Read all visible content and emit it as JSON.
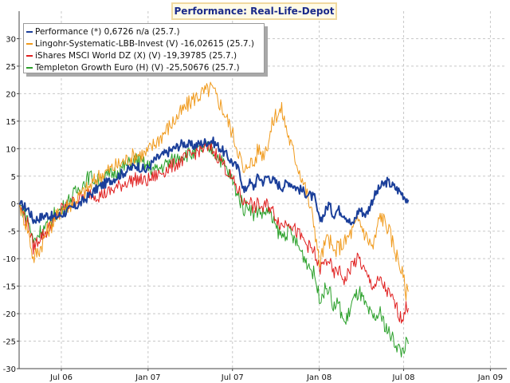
{
  "chart_data": {
    "type": "line",
    "title": "Performance: Real-Life-Depot",
    "ylim": [
      -30,
      35
    ],
    "yticks": [
      -30,
      -25,
      -20,
      -15,
      -10,
      -5,
      0,
      5,
      10,
      15,
      20,
      25,
      30
    ],
    "xlim": [
      0,
      1040
    ],
    "xticks": [
      {
        "label": "Jul 06",
        "day": 90
      },
      {
        "label": "Jan 07",
        "day": 275
      },
      {
        "label": "Jul 07",
        "day": 455
      },
      {
        "label": "Jan 08",
        "day": 640
      },
      {
        "label": "Jul 08",
        "day": 820
      },
      {
        "label": "Jan 09",
        "day": 1005
      }
    ],
    "grid": true,
    "legend_position": "top-left",
    "series": [
      {
        "name": "Performance (*) 0,6726 n/a (25.7.)",
        "color": "#1b3f9a",
        "x": [
          0,
          20,
          30,
          45,
          60,
          75,
          90,
          110,
          130,
          150,
          170,
          190,
          210,
          230,
          250,
          270,
          290,
          310,
          330,
          350,
          370,
          390,
          410,
          430,
          450,
          470,
          480,
          490,
          500,
          510,
          520,
          530,
          545,
          560,
          575,
          590,
          610,
          630,
          640,
          650,
          660,
          670,
          680,
          695,
          710,
          725,
          740,
          755,
          770,
          785,
          800,
          815,
          825,
          830
        ],
        "values": [
          0,
          -1,
          -3,
          -2.5,
          -2,
          -2.5,
          -2,
          -1,
          0,
          1.5,
          3,
          4,
          5,
          6,
          7,
          6,
          8,
          9,
          10,
          11,
          10.5,
          11,
          11.5,
          10,
          8,
          6,
          2,
          4,
          3,
          5,
          4,
          5,
          4,
          3,
          4,
          3,
          2,
          1,
          -3,
          -2,
          0,
          -2,
          -1,
          -2,
          -4,
          -1,
          -2,
          1,
          3,
          4,
          3,
          2,
          1,
          0.7
        ]
      },
      {
        "name": "Lingohr-Systematic-LBB-Invest (V) -16,02615 (25.7.)",
        "color": "#f09a1c",
        "x": [
          0,
          20,
          30,
          45,
          60,
          75,
          90,
          110,
          130,
          150,
          170,
          190,
          210,
          230,
          250,
          270,
          290,
          310,
          330,
          350,
          370,
          390,
          410,
          430,
          450,
          470,
          480,
          490,
          500,
          510,
          520,
          530,
          545,
          560,
          575,
          590,
          610,
          630,
          640,
          650,
          660,
          670,
          680,
          695,
          710,
          725,
          740,
          755,
          770,
          785,
          800,
          815,
          825,
          830
        ],
        "values": [
          0,
          -5,
          -10,
          -8,
          -5,
          -3,
          -1,
          0,
          1.5,
          3,
          5,
          6,
          7,
          8,
          9,
          9,
          11,
          13,
          15,
          17,
          19,
          20,
          21,
          18,
          14,
          9,
          5,
          8,
          7,
          10,
          9,
          11,
          16,
          17,
          12,
          8,
          3,
          -4,
          -11,
          -8,
          -6,
          -9,
          -8,
          -7,
          -5,
          -3,
          -6,
          -8,
          -2,
          -4,
          -8,
          -12,
          -16,
          -16
        ]
      },
      {
        "name": "iShares MSCI World DZ (X) (V) -19,39785 (25.7.)",
        "color": "#e02020",
        "x": [
          0,
          20,
          30,
          45,
          60,
          75,
          90,
          110,
          130,
          150,
          170,
          190,
          210,
          230,
          250,
          270,
          290,
          310,
          330,
          350,
          370,
          390,
          410,
          430,
          450,
          470,
          480,
          490,
          500,
          510,
          520,
          530,
          545,
          560,
          575,
          590,
          610,
          630,
          640,
          650,
          660,
          670,
          680,
          695,
          710,
          725,
          740,
          755,
          770,
          785,
          800,
          815,
          825,
          830
        ],
        "values": [
          0,
          -4,
          -8,
          -6,
          -5,
          -3,
          -1,
          0,
          1,
          2,
          1.5,
          2,
          3,
          4,
          4.5,
          4,
          5,
          6,
          7,
          8,
          9,
          10,
          10,
          8,
          5,
          2,
          0,
          1,
          -1,
          0,
          -1,
          0,
          -2,
          -4,
          -3,
          -5,
          -7,
          -9,
          -12,
          -11,
          -10,
          -13,
          -12,
          -14,
          -11,
          -10,
          -13,
          -15,
          -14,
          -16,
          -18,
          -21,
          -19,
          -19
        ]
      },
      {
        "name": "Templeton Growth Euro (H) (V) -25,50676 (25.7.)",
        "color": "#2aa02a",
        "x": [
          0,
          20,
          30,
          45,
          60,
          75,
          90,
          110,
          130,
          150,
          170,
          190,
          210,
          230,
          250,
          270,
          290,
          310,
          330,
          350,
          370,
          390,
          410,
          430,
          450,
          470,
          480,
          490,
          500,
          510,
          520,
          530,
          545,
          560,
          575,
          590,
          610,
          630,
          640,
          650,
          660,
          670,
          680,
          695,
          710,
          725,
          740,
          755,
          770,
          785,
          800,
          815,
          825,
          830
        ],
        "values": [
          0,
          -3,
          -7,
          -5,
          -4,
          -2,
          -1,
          1,
          3,
          5,
          4,
          5,
          6,
          7,
          8,
          7,
          6,
          7,
          8,
          9,
          9,
          10,
          10,
          8,
          5,
          1,
          -1,
          0,
          -2,
          -1,
          -2,
          -1,
          -4,
          -6,
          -5,
          -7,
          -10,
          -13,
          -17,
          -16,
          -15,
          -19,
          -18,
          -22,
          -18,
          -16,
          -19,
          -21,
          -20,
          -23,
          -25,
          -27,
          -25.5,
          -25.5
        ]
      }
    ]
  }
}
